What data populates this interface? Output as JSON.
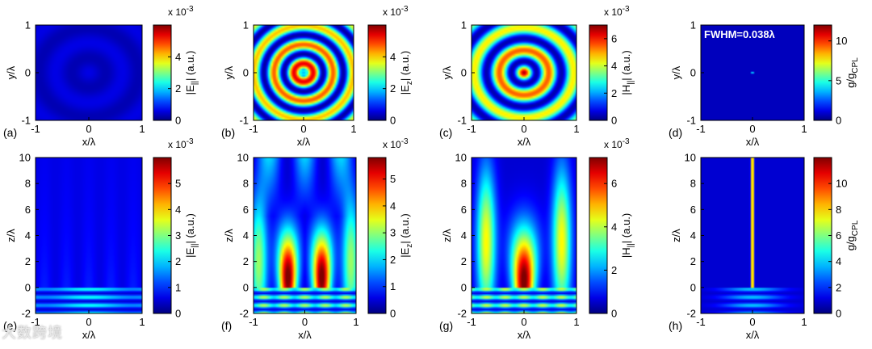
{
  "colors": {
    "colormap": "jet",
    "background": "#ffffff",
    "frame": "#000000"
  },
  "watermark": "大数跨境",
  "chart_data": [
    {
      "panel": "(a)",
      "type": "heatmap",
      "field": "E_par",
      "xlabel": "x/λ",
      "ylabel": "y/λ",
      "xlim": [
        -1,
        1
      ],
      "ylim": [
        -1,
        1
      ],
      "xticks": [
        "-1",
        "0",
        "1"
      ],
      "yticks": [
        "-1",
        "0",
        "1"
      ],
      "colorbar": {
        "label_main": "|E",
        "label_sub": "||",
        "label_end": "| (a.u.)",
        "exponent": "x 10",
        "exponent_power": "-3",
        "range": [
          0,
          6
        ],
        "ticks": [
          "0",
          "2",
          "4"
        ]
      },
      "annotation": ""
    },
    {
      "panel": "(b)",
      "type": "heatmap",
      "field": "E_z",
      "xlabel": "x/λ",
      "ylabel": "y/λ",
      "xlim": [
        -1,
        1
      ],
      "ylim": [
        -1,
        1
      ],
      "xticks": [
        "-1",
        "0",
        "1"
      ],
      "yticks": [
        "-1",
        "0",
        "1"
      ],
      "colorbar": {
        "label_main": "|E",
        "label_sub": "z",
        "label_end": "| (a.u.)",
        "exponent": "x 10",
        "exponent_power": "-3",
        "range": [
          0,
          6
        ],
        "ticks": [
          "0",
          "2",
          "4"
        ]
      },
      "annotation": ""
    },
    {
      "panel": "(c)",
      "type": "heatmap",
      "field": "H_par",
      "xlabel": "x/λ",
      "ylabel": "y/λ",
      "xlim": [
        -1,
        1
      ],
      "ylim": [
        -1,
        1
      ],
      "xticks": [
        "-1",
        "0",
        "1"
      ],
      "yticks": [
        "-1",
        "0",
        "1"
      ],
      "colorbar": {
        "label_main": "|H",
        "label_sub": "||",
        "label_end": "| (a.u.)",
        "exponent": "x 10",
        "exponent_power": "-3",
        "range": [
          0,
          7
        ],
        "ticks": [
          "0",
          "2",
          "4",
          "6"
        ]
      },
      "annotation": ""
    },
    {
      "panel": "(d)",
      "type": "heatmap",
      "field": "g",
      "xlabel": "x/λ",
      "ylabel": "y/λ",
      "xlim": [
        -1,
        1
      ],
      "ylim": [
        -1,
        1
      ],
      "xticks": [
        "-1",
        "0",
        "1"
      ],
      "yticks": [
        "-1",
        "0",
        "1"
      ],
      "colorbar": {
        "label_main": "g/g",
        "label_sub": "CPL",
        "label_end": "",
        "exponent": "",
        "exponent_power": "",
        "range": [
          0,
          12
        ],
        "ticks": [
          "0",
          "5",
          "10"
        ]
      },
      "annotation": "FWHM=0.038λ"
    },
    {
      "panel": "(e)",
      "type": "heatmap",
      "field": "E_par_z",
      "xlabel": "x/λ",
      "ylabel": "z/λ",
      "xlim": [
        -1,
        1
      ],
      "ylim": [
        -2,
        10
      ],
      "xticks": [
        "-1",
        "0",
        "1"
      ],
      "yticks": [
        "-2",
        "0",
        "2",
        "4",
        "6",
        "8",
        "10"
      ],
      "colorbar": {
        "label_main": "|E",
        "label_sub": "||",
        "label_end": "| (a.u.)",
        "exponent": "x 10",
        "exponent_power": "-3",
        "range": [
          0,
          6
        ],
        "ticks": [
          "0",
          "1",
          "2",
          "3",
          "4",
          "5"
        ]
      },
      "annotation": ""
    },
    {
      "panel": "(f)",
      "type": "heatmap",
      "field": "E_z_z",
      "xlabel": "x/λ",
      "ylabel": "z/λ",
      "xlim": [
        -1,
        1
      ],
      "ylim": [
        -2,
        10
      ],
      "xticks": [
        "-1",
        "0",
        "1"
      ],
      "yticks": [
        "-2",
        "0",
        "2",
        "4",
        "6",
        "8",
        "10"
      ],
      "colorbar": {
        "label_main": "|E",
        "label_sub": "z",
        "label_end": "| (a.u.)",
        "exponent": "x 10",
        "exponent_power": "-3",
        "range": [
          0,
          5.8
        ],
        "ticks": [
          "0",
          "1",
          "2",
          "3",
          "4",
          "5"
        ]
      },
      "annotation": ""
    },
    {
      "panel": "(g)",
      "type": "heatmap",
      "field": "H_par_z",
      "xlabel": "x/λ",
      "ylabel": "z/λ",
      "xlim": [
        -1,
        1
      ],
      "ylim": [
        -2,
        10
      ],
      "xticks": [
        "-1",
        "0",
        "1"
      ],
      "yticks": [
        "-2",
        "0",
        "2",
        "4",
        "6",
        "8",
        "10"
      ],
      "colorbar": {
        "label_main": "|H",
        "label_sub": "||",
        "label_end": "| (a.u.)",
        "exponent": "x 10",
        "exponent_power": "-3",
        "range": [
          0,
          7.2
        ],
        "ticks": [
          "0",
          "2",
          "4",
          "6"
        ]
      },
      "annotation": ""
    },
    {
      "panel": "(h)",
      "type": "heatmap",
      "field": "g_z",
      "xlabel": "x/λ",
      "ylabel": "z/λ",
      "xlim": [
        -1,
        1
      ],
      "ylim": [
        -2,
        10
      ],
      "xticks": [
        "-1",
        "0",
        "1"
      ],
      "yticks": [
        "-2",
        "0",
        "2",
        "4",
        "6",
        "8",
        "10"
      ],
      "colorbar": {
        "label_main": "g/g",
        "label_sub": "CPL",
        "label_end": "",
        "exponent": "",
        "exponent_power": "",
        "range": [
          0,
          12
        ],
        "ticks": [
          "0",
          "2",
          "4",
          "6",
          "8",
          "10"
        ]
      },
      "annotation": ""
    }
  ]
}
